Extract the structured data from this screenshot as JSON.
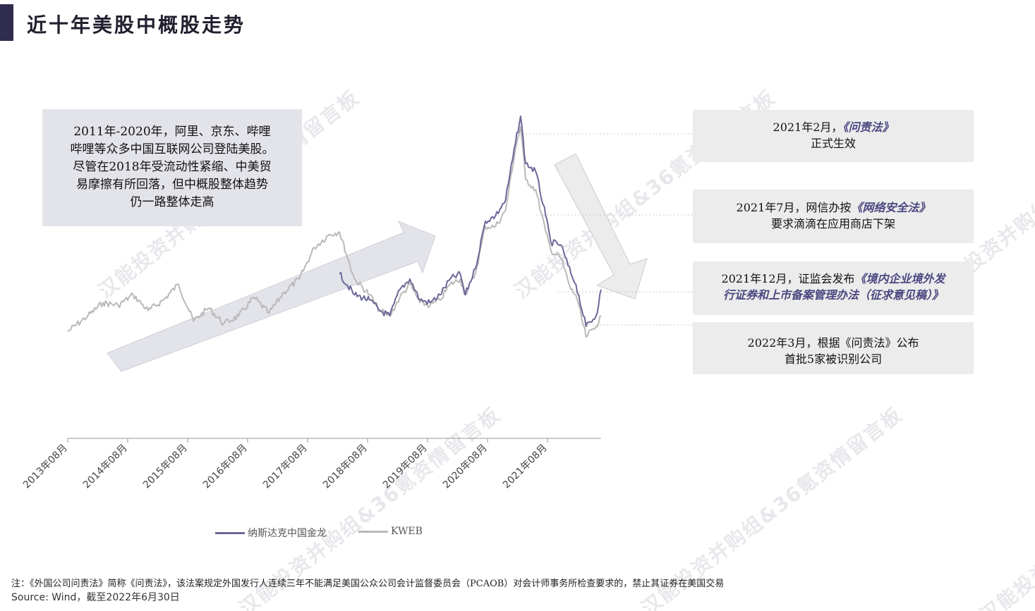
{
  "page": {
    "title": "近十年美股中概股走势",
    "watermark": "汉能投资并购组&36氪资情留言板"
  },
  "callout": {
    "text_lines": [
      "2011年-2020年，阿里、京东、哔哩",
      "哔哩等众多中国互联网公司登陆美股。",
      "尽管在2018年受流动性紧缩、中美贸",
      "易摩擦有所回落，但中概股整体趋势",
      "仍一路整体走高"
    ]
  },
  "events": [
    {
      "line1_prefix": "2021年2月，",
      "line1_law": "《问责法》",
      "line2_plain": "正式生效",
      "line2_law": ""
    },
    {
      "line1_prefix": "2021年7月，网信办按",
      "line1_law": "《网络安全法》",
      "line2_plain": "要求滴滴在应用商店下架",
      "line2_law": ""
    },
    {
      "line1_prefix": "2021年12月，证监会发布",
      "line1_law": "《境内企业境外发",
      "line2_plain": "",
      "line2_law": "行证券和上市备案管理办法（征求意见稿）》"
    },
    {
      "line1_prefix": "2022年3月，根据《问责法》公布",
      "line1_law": "",
      "line2_plain": "首批5家被识别公司",
      "line2_law": ""
    }
  ],
  "chart_data": {
    "type": "line",
    "x_start": "2013-08",
    "x_end": "2022-06",
    "xticks": [
      "2013年08月",
      "2014年08月",
      "2015年08月",
      "2016年08月",
      "2017年08月",
      "2018年08月",
      "2019年08月",
      "2020年08月",
      "2021年08月"
    ],
    "series": [
      {
        "name": "纳斯达克中国金龙",
        "color": "#6a6898",
        "x": [
          "2018-02",
          "2018-05",
          "2018-08",
          "2018-10",
          "2018-12",
          "2019-02",
          "2019-04",
          "2019-06",
          "2019-08",
          "2019-10",
          "2019-12",
          "2020-02",
          "2020-03",
          "2020-05",
          "2020-07",
          "2020-09",
          "2020-11",
          "2021-01",
          "2021-02",
          "2021-03",
          "2021-05",
          "2021-07",
          "2021-08",
          "2021-10",
          "2021-12",
          "2022-01",
          "2022-03",
          "2022-05",
          "2022-06"
        ],
        "values": [
          46,
          38,
          36,
          32,
          30,
          40,
          44,
          36,
          35,
          38,
          44,
          46,
          38,
          48,
          66,
          68,
          74,
          96,
          106,
          88,
          85,
          68,
          58,
          57,
          46,
          42,
          26,
          30,
          40
        ]
      },
      {
        "name": "KWEB",
        "color": "#b9b9b9",
        "x": [
          "2013-08",
          "2013-12",
          "2014-03",
          "2014-06",
          "2014-09",
          "2014-12",
          "2015-03",
          "2015-06",
          "2015-09",
          "2015-12",
          "2016-03",
          "2016-06",
          "2016-09",
          "2016-12",
          "2017-03",
          "2017-06",
          "2017-09",
          "2017-12",
          "2018-02",
          "2018-05",
          "2018-08",
          "2018-10",
          "2018-12",
          "2019-02",
          "2019-04",
          "2019-06",
          "2019-08",
          "2019-10",
          "2019-12",
          "2020-02",
          "2020-03",
          "2020-05",
          "2020-07",
          "2020-09",
          "2020-11",
          "2021-01",
          "2021-02",
          "2021-03",
          "2021-05",
          "2021-07",
          "2021-08",
          "2021-10",
          "2021-12",
          "2022-01",
          "2022-03",
          "2022-05",
          "2022-06"
        ],
        "values": [
          24,
          30,
          35,
          34,
          38,
          32,
          36,
          42,
          28,
          33,
          27,
          30,
          37,
          31,
          39,
          44,
          56,
          61,
          62,
          44,
          38,
          32,
          30,
          37,
          42,
          35,
          34,
          36,
          42,
          44,
          38,
          46,
          64,
          64,
          70,
          94,
          102,
          82,
          78,
          62,
          55,
          52,
          40,
          38,
          22,
          26,
          30
        ]
      }
    ],
    "ylim": [
      0,
      110
    ],
    "grid": false,
    "legend_position": "bottom",
    "arrows": [
      "up-trend",
      "down-trend"
    ]
  },
  "footer": {
    "note": "注：《外国公司问责法》简称《问责法》，该法案规定外国发行人连续三年不能满足美国公众公司会计监督委员会（PCAOB）对会计师事务所检查要求的，禁止其证券在美国交易",
    "source": "Source: Wind，截至2022年6月30日"
  }
}
